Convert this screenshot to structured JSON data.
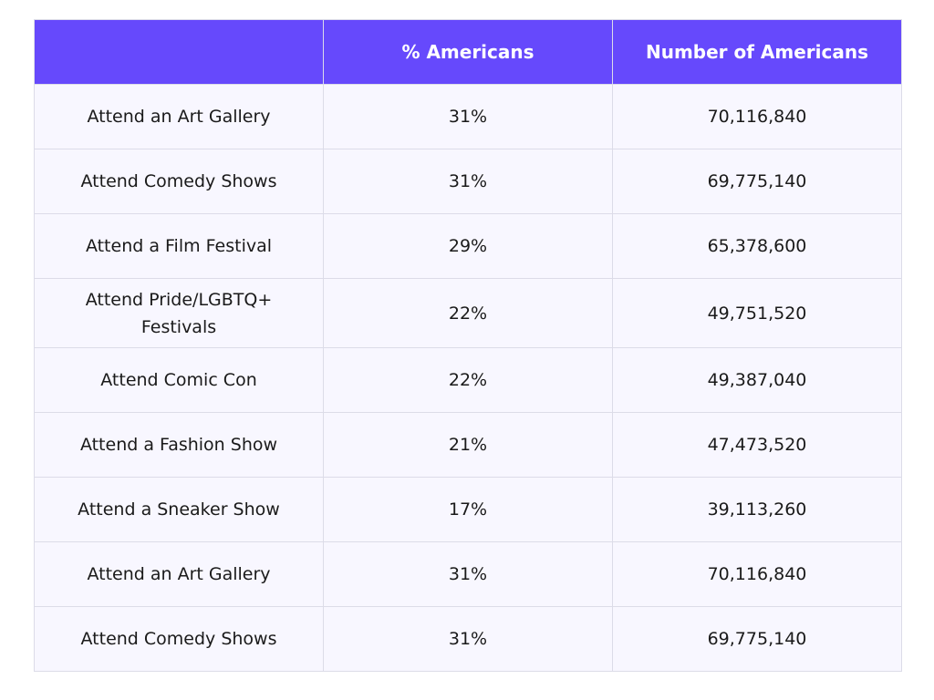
{
  "table": {
    "header": [
      "% Americans",
      "Number of Americans"
    ],
    "rows": [
      [
        "Attend an Art Gallery",
        "31%",
        "70,116,840"
      ],
      [
        "Attend Comedy Shows",
        "31%",
        "69,775,140"
      ],
      [
        "Attend a Film Festival",
        "29%",
        "65,378,600"
      ],
      [
        "Attend Pride/LGBTQ+ Festivals",
        "22%",
        "49,751,520"
      ],
      [
        "Attend Comic Con",
        "22%",
        "49,387,040"
      ],
      [
        "Attend a Fashion Show",
        "21%",
        "47,473,520"
      ],
      [
        "Attend a Sneaker Show",
        "17%",
        "39,113,260"
      ],
      [
        "Attend an Art Gallery",
        "31%",
        "70,116,840"
      ],
      [
        "Attend Comedy Shows",
        "31%",
        "69,775,140"
      ]
    ]
  }
}
